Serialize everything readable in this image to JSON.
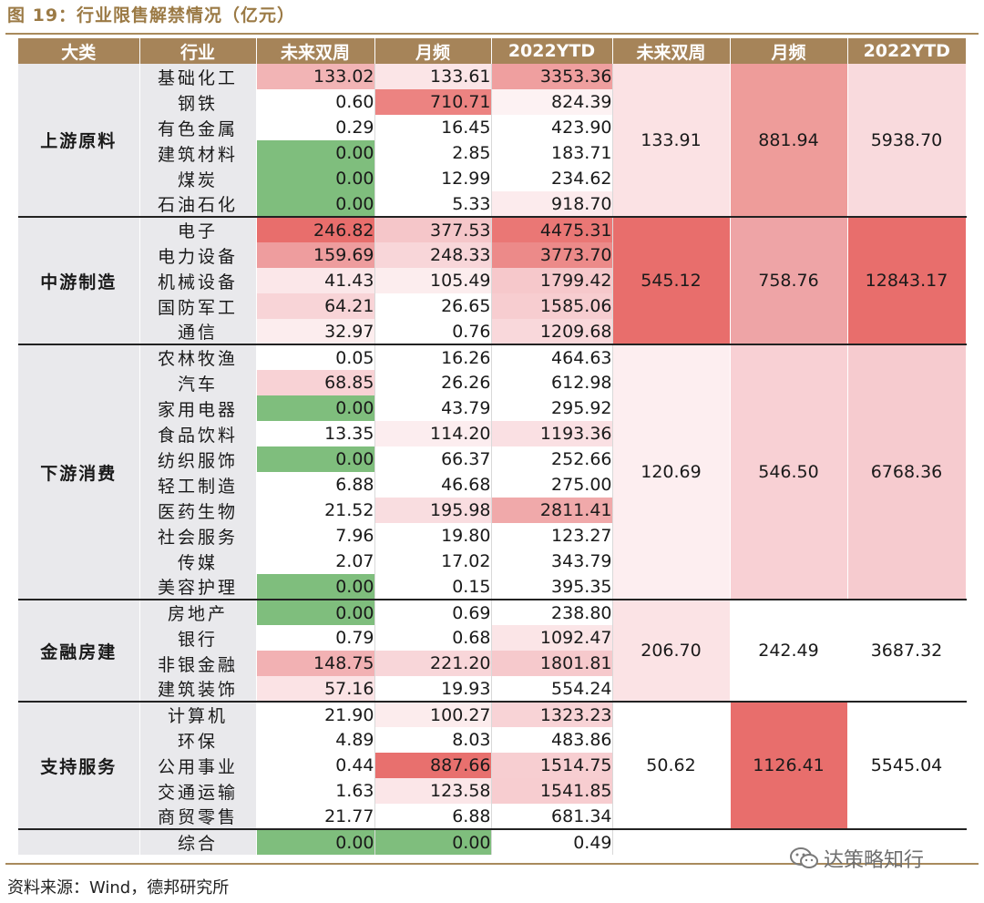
{
  "title": "图 19：行业限售解禁情况（亿元）",
  "headers": [
    "大类",
    "行业",
    "未来双周",
    "月频",
    "2022YTD",
    "未来双周",
    "月频",
    "2022YTD"
  ],
  "groups": [
    {
      "name": "上游原料",
      "agg": [
        "133.91",
        "881.94",
        "5938.70"
      ],
      "agg_colors": [
        "#fbe2e4",
        "#ee9c9a",
        "#f9dadd"
      ],
      "rows": [
        {
          "ind": "基础化工",
          "v": [
            "133.02",
            "133.61",
            "3353.36"
          ],
          "c": [
            "#f2b4b5",
            "#fbe5e7",
            "#ef9f9f"
          ]
        },
        {
          "ind": "钢铁",
          "v": [
            "0.60",
            "710.71",
            "824.39"
          ],
          "c": [
            "#ffffff",
            "#ec8381",
            "#fdf2f3"
          ]
        },
        {
          "ind": "有色金属",
          "v": [
            "0.29",
            "16.45",
            "423.90"
          ],
          "c": [
            "#ffffff",
            "#ffffff",
            "#ffffff"
          ]
        },
        {
          "ind": "建筑材料",
          "v": [
            "0.00",
            "2.85",
            "183.71"
          ],
          "c": [
            "#7fbe7d",
            "#ffffff",
            "#ffffff"
          ]
        },
        {
          "ind": "煤炭",
          "v": [
            "0.00",
            "12.99",
            "234.62"
          ],
          "c": [
            "#7fbe7d",
            "#ffffff",
            "#ffffff"
          ]
        },
        {
          "ind": "石油石化",
          "v": [
            "0.00",
            "5.33",
            "918.70"
          ],
          "c": [
            "#7fbe7d",
            "#ffffff",
            "#fcebed"
          ]
        }
      ]
    },
    {
      "name": "中游制造",
      "agg": [
        "545.12",
        "758.76",
        "12843.17"
      ],
      "agg_colors": [
        "#e86e6c",
        "#eea4a6",
        "#e86e6c"
      ],
      "rows": [
        {
          "ind": "电子",
          "v": [
            "246.82",
            "377.53",
            "4475.31"
          ],
          "c": [
            "#e86e6c",
            "#f5c6c9",
            "#ea7775"
          ]
        },
        {
          "ind": "电力设备",
          "v": [
            "159.69",
            "248.33",
            "3773.70"
          ],
          "c": [
            "#ee9d9e",
            "#f8d6d9",
            "#ec8a89"
          ]
        },
        {
          "ind": "机械设备",
          "v": [
            "41.43",
            "105.49",
            "1799.42"
          ],
          "c": [
            "#fbe7e9",
            "#fcedee",
            "#f6c8cb"
          ]
        },
        {
          "ind": "国防军工",
          "v": [
            "64.21",
            "26.65",
            "1585.06"
          ],
          "c": [
            "#f8d4d7",
            "#ffffff",
            "#f7cdd0"
          ]
        },
        {
          "ind": "通信",
          "v": [
            "32.97",
            "0.76",
            "1209.68"
          ],
          "c": [
            "#fcedee",
            "#ffffff",
            "#f9d8db"
          ]
        }
      ]
    },
    {
      "name": "下游消费",
      "agg": [
        "120.69",
        "546.50",
        "6768.36"
      ],
      "agg_colors": [
        "#fdeef0",
        "#f8d0d4",
        "#f6cbcf"
      ],
      "rows": [
        {
          "ind": "农林牧渔",
          "v": [
            "0.05",
            "16.26",
            "464.63"
          ],
          "c": [
            "#ffffff",
            "#ffffff",
            "#ffffff"
          ]
        },
        {
          "ind": "汽车",
          "v": [
            "68.85",
            "26.26",
            "612.98"
          ],
          "c": [
            "#f8d2d5",
            "#ffffff",
            "#ffffff"
          ]
        },
        {
          "ind": "家用电器",
          "v": [
            "0.00",
            "43.79",
            "295.92"
          ],
          "c": [
            "#7fbe7d",
            "#ffffff",
            "#ffffff"
          ]
        },
        {
          "ind": "食品饮料",
          "v": [
            "13.35",
            "114.20",
            "1193.36"
          ],
          "c": [
            "#ffffff",
            "#fcedef",
            "#fae0e3"
          ]
        },
        {
          "ind": "纺织服饰",
          "v": [
            "0.00",
            "66.37",
            "252.66"
          ],
          "c": [
            "#7fbe7d",
            "#ffffff",
            "#ffffff"
          ]
        },
        {
          "ind": "轻工制造",
          "v": [
            "6.88",
            "46.68",
            "275.00"
          ],
          "c": [
            "#ffffff",
            "#ffffff",
            "#ffffff"
          ]
        },
        {
          "ind": "医药生物",
          "v": [
            "21.52",
            "195.98",
            "2811.41"
          ],
          "c": [
            "#ffffff",
            "#f9dde0",
            "#f0a9aa"
          ]
        },
        {
          "ind": "社会服务",
          "v": [
            "7.96",
            "19.80",
            "123.27"
          ],
          "c": [
            "#ffffff",
            "#ffffff",
            "#ffffff"
          ]
        },
        {
          "ind": "传媒",
          "v": [
            "2.07",
            "17.02",
            "343.79"
          ],
          "c": [
            "#ffffff",
            "#ffffff",
            "#ffffff"
          ]
        },
        {
          "ind": "美容护理",
          "v": [
            "0.00",
            "0.15",
            "395.35"
          ],
          "c": [
            "#7fbe7d",
            "#ffffff",
            "#ffffff"
          ]
        }
      ]
    },
    {
      "name": "金融房建",
      "agg": [
        "206.70",
        "242.49",
        "3687.32"
      ],
      "agg_colors": [
        "#fbe3e5",
        "#ffffff",
        "#ffffff"
      ],
      "rows": [
        {
          "ind": "房地产",
          "v": [
            "0.00",
            "0.69",
            "238.80"
          ],
          "c": [
            "#7fbe7d",
            "#ffffff",
            "#ffffff"
          ]
        },
        {
          "ind": "银行",
          "v": [
            "0.79",
            "0.68",
            "1092.47"
          ],
          "c": [
            "#ffffff",
            "#ffffff",
            "#fbe5e7"
          ]
        },
        {
          "ind": "非银金融",
          "v": [
            "148.75",
            "221.20",
            "1801.81"
          ],
          "c": [
            "#f2b1b3",
            "#f8d6d9",
            "#f6c9cc"
          ]
        },
        {
          "ind": "建筑装饰",
          "v": [
            "57.16",
            "19.93",
            "554.24"
          ],
          "c": [
            "#fbe3e5",
            "#ffffff",
            "#ffffff"
          ]
        }
      ]
    },
    {
      "name": "支持服务",
      "agg": [
        "50.62",
        "1126.41",
        "5545.04"
      ],
      "agg_colors": [
        "#ffffff",
        "#e86e6c",
        "#ffffff"
      ],
      "rows": [
        {
          "ind": "计算机",
          "v": [
            "21.90",
            "100.27",
            "1323.23"
          ],
          "c": [
            "#ffffff",
            "#fceced",
            "#f8d3d6"
          ]
        },
        {
          "ind": "环保",
          "v": [
            "4.89",
            "8.03",
            "483.86"
          ],
          "c": [
            "#ffffff",
            "#ffffff",
            "#ffffff"
          ]
        },
        {
          "ind": "公用事业",
          "v": [
            "0.44",
            "887.66",
            "1514.75"
          ],
          "c": [
            "#ffffff",
            "#e8706e",
            "#f7ced1"
          ]
        },
        {
          "ind": "交通运输",
          "v": [
            "1.63",
            "123.58",
            "1541.85"
          ],
          "c": [
            "#ffffff",
            "#fbe6e8",
            "#f7cdd0"
          ]
        },
        {
          "ind": "商贸零售",
          "v": [
            "21.77",
            "6.88",
            "681.34"
          ],
          "c": [
            "#ffffff",
            "#ffffff",
            "#ffffff"
          ]
        }
      ]
    },
    {
      "name": "",
      "agg": [
        "",
        "",
        ""
      ],
      "agg_colors": [
        "#ffffff",
        "#ffffff",
        "#ffffff"
      ],
      "rows": [
        {
          "ind": "综合",
          "v": [
            "0.00",
            "0.00",
            "0.49"
          ],
          "c": [
            "#7fbe7d",
            "#7fbe7d",
            "#ffffff"
          ]
        }
      ]
    }
  ],
  "source": "资料来源：Wind，德邦研究所",
  "watermark": "达策略知行"
}
